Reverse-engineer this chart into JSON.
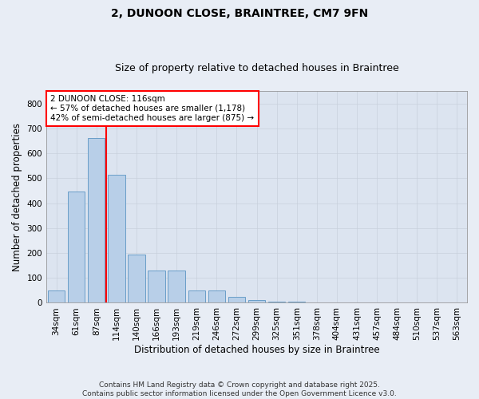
{
  "title_line1": "2, DUNOON CLOSE, BRAINTREE, CM7 9FN",
  "title_line2": "Size of property relative to detached houses in Braintree",
  "xlabel": "Distribution of detached houses by size in Braintree",
  "ylabel": "Number of detached properties",
  "categories": [
    "34sqm",
    "61sqm",
    "87sqm",
    "114sqm",
    "140sqm",
    "166sqm",
    "193sqm",
    "219sqm",
    "246sqm",
    "272sqm",
    "299sqm",
    "325sqm",
    "351sqm",
    "378sqm",
    "404sqm",
    "431sqm",
    "457sqm",
    "484sqm",
    "510sqm",
    "537sqm",
    "563sqm"
  ],
  "values": [
    50,
    445,
    660,
    515,
    195,
    130,
    130,
    50,
    50,
    25,
    10,
    5,
    5,
    0,
    0,
    0,
    0,
    0,
    0,
    0,
    0
  ],
  "bar_color": "#b8cfe8",
  "bar_edge_color": "#6a9ec8",
  "highlight_bar_index": 2,
  "highlight_color": "red",
  "annotation_text": "2 DUNOON CLOSE: 116sqm\n← 57% of detached houses are smaller (1,178)\n42% of semi-detached houses are larger (875) →",
  "annotation_box_color": "white",
  "annotation_box_edge": "red",
  "ylim": [
    0,
    850
  ],
  "yticks": [
    0,
    100,
    200,
    300,
    400,
    500,
    600,
    700,
    800
  ],
  "grid_color": "#c8d0dc",
  "background_color": "#e8edf5",
  "plot_bg_color": "#dce4f0",
  "footer_text": "Contains HM Land Registry data © Crown copyright and database right 2025.\nContains public sector information licensed under the Open Government Licence v3.0.",
  "title_fontsize": 10,
  "subtitle_fontsize": 9,
  "tick_fontsize": 7.5,
  "label_fontsize": 8.5,
  "annotation_fontsize": 7.5,
  "footer_fontsize": 6.5
}
